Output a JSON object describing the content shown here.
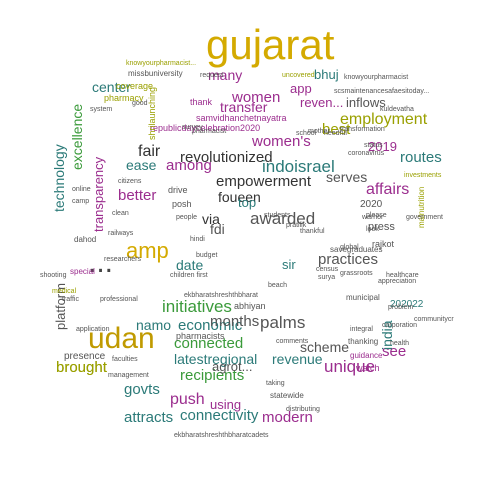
{
  "word_cloud": {
    "words": [
      {
        "text": "gujarat",
        "color": "#d4aa00"
      },
      {
        "text": "udan",
        "color": "#c09a00"
      },
      {
        "text": "amp",
        "color": "#d4aa00"
      },
      {
        "text": "...",
        "color": "#444444"
      },
      {
        "text": "indoisrael",
        "color": "#2b7a78"
      },
      {
        "text": "empowerment",
        "color": "#333333"
      },
      {
        "text": "revolutionized",
        "color": "#333333"
      },
      {
        "text": "employment",
        "color": "#9aa000"
      },
      {
        "text": "initiatives",
        "color": "#3a9a3a"
      },
      {
        "text": "practices",
        "color": "#555555"
      },
      {
        "text": "unique",
        "color": "#9b2d8e"
      },
      {
        "text": "women's",
        "color": "#9b2d8e"
      },
      {
        "text": "women",
        "color": "#9b2d8e"
      },
      {
        "text": "awarded",
        "color": "#555555"
      },
      {
        "text": "connected",
        "color": "#3a9a3a"
      },
      {
        "text": "economic",
        "color": "#2b7a78"
      },
      {
        "text": "palms",
        "color": "#555555"
      },
      {
        "text": "months",
        "color": "#555555"
      },
      {
        "text": "scheme",
        "color": "#555555"
      },
      {
        "text": "revenue",
        "color": "#2b7a78"
      },
      {
        "text": "recipients",
        "color": "#3a9a3a"
      },
      {
        "text": "latestregional",
        "color": "#2b7a78"
      },
      {
        "text": "connectivity",
        "color": "#2b7a78"
      },
      {
        "text": "modern",
        "color": "#9b2d8e"
      },
      {
        "text": "attracts",
        "color": "#2b7a78"
      },
      {
        "text": "brought",
        "color": "#9aa000"
      },
      {
        "text": "push",
        "color": "#9b2d8e"
      },
      {
        "text": "using",
        "color": "#9b2d8e"
      },
      {
        "text": "govts",
        "color": "#2b7a78"
      },
      {
        "text": "namo",
        "color": "#2b7a78"
      },
      {
        "text": "see",
        "color": "#9b2d8e"
      },
      {
        "text": "affairs",
        "color": "#9b2d8e"
      },
      {
        "text": "routes",
        "color": "#2b7a78"
      },
      {
        "text": "best",
        "color": "#9aa000"
      },
      {
        "text": "2019",
        "color": "#9b2d8e"
      },
      {
        "text": "serves",
        "color": "#555555"
      },
      {
        "text": "inflows",
        "color": "#555555"
      },
      {
        "text": "reven...",
        "color": "#9b2d8e"
      },
      {
        "text": "app",
        "color": "#9b2d8e"
      },
      {
        "text": "many",
        "color": "#9b2d8e"
      },
      {
        "text": "bhuj",
        "color": "#2b7a78"
      },
      {
        "text": "transfer",
        "color": "#9b2d8e"
      },
      {
        "text": "among",
        "color": "#9b2d8e"
      },
      {
        "text": "foueen",
        "color": "#333333"
      },
      {
        "text": "fair",
        "color": "#333333"
      },
      {
        "text": "ease",
        "color": "#2b7a78"
      },
      {
        "text": "better",
        "color": "#9b2d8e"
      },
      {
        "text": "center",
        "color": "#2b7a78"
      },
      {
        "text": "excellence",
        "color": "#3a9a3a"
      },
      {
        "text": "technology",
        "color": "#2b7a78"
      },
      {
        "text": "transparency",
        "color": "#9b2d8e"
      },
      {
        "text": "platform",
        "color": "#555555"
      },
      {
        "text": "date",
        "color": "#2b7a78"
      },
      {
        "text": "fdi",
        "color": "#555555"
      },
      {
        "text": "via",
        "color": "#333333"
      },
      {
        "text": "top",
        "color": "#2b7a78"
      },
      {
        "text": "sir",
        "color": "#2b7a78"
      },
      {
        "text": "india",
        "color": "#2b7a78"
      },
      {
        "text": "agrot...",
        "color": "#555555"
      },
      {
        "text": "press",
        "color": "#555555"
      },
      {
        "text": "2020",
        "color": "#555555"
      },
      {
        "text": "samvidhanchetnayatra",
        "color": "#9b2d8e"
      },
      {
        "text": "republicdaycelebration2020",
        "color": "#9b2d8e"
      },
      {
        "text": "shrilaunching",
        "color": "#9aa000"
      },
      {
        "text": "coverage",
        "color": "#9aa000"
      },
      {
        "text": "pharmacy",
        "color": "#9aa000"
      },
      {
        "text": "thank",
        "color": "#9b2d8e"
      },
      {
        "text": "missbuniversity",
        "color": "#555555"
      },
      {
        "text": "request",
        "color": "#555555"
      },
      {
        "text": "knowyourpharmacist...",
        "color": "#9aa000"
      },
      {
        "text": "knowyourpharmacist",
        "color": "#555555"
      },
      {
        "text": "scsmaintenancesafaesitoday...",
        "color": "#555555"
      },
      {
        "text": "uncovered",
        "color": "#9aa000"
      },
      {
        "text": "abhiyan",
        "color": "#555555"
      },
      {
        "text": "pharmacists",
        "color": "#555555"
      },
      {
        "text": "statewide",
        "color": "#555555"
      },
      {
        "text": "brought",
        "color": "#9aa000"
      },
      {
        "text": "presence",
        "color": "#555555"
      },
      {
        "text": "202022",
        "color": "#2b7a78"
      },
      {
        "text": "municipal",
        "color": "#555555"
      },
      {
        "text": "thanking",
        "color": "#555555"
      },
      {
        "text": "malnutrition",
        "color": "#9aa000"
      },
      {
        "text": "guidance",
        "color": "#9b2d8e"
      },
      {
        "text": "watch",
        "color": "#9b2d8e"
      },
      {
        "text": "drive",
        "color": "#555555"
      },
      {
        "text": "posh",
        "color": "#555555"
      },
      {
        "text": "system",
        "color": "#555555"
      },
      {
        "text": "school",
        "color": "#555555"
      },
      {
        "text": "survey",
        "color": "#555555"
      },
      {
        "text": "good",
        "color": "#555555"
      },
      {
        "text": "status",
        "color": "#555555"
      },
      {
        "text": "kuldevatha",
        "color": "#555555"
      },
      {
        "text": "healthcare",
        "color": "#555555"
      },
      {
        "text": "investments",
        "color": "#9aa000"
      },
      {
        "text": "mother",
        "color": "#555555"
      },
      {
        "text": "corporation",
        "color": "#555555"
      },
      {
        "text": "communitycr",
        "color": "#555555"
      },
      {
        "text": "appreciation",
        "color": "#555555"
      },
      {
        "text": "problem",
        "color": "#555555"
      },
      {
        "text": "ekbharatshreshthbharat",
        "color": "#555555"
      },
      {
        "text": "ekbharatshreshthbharatcadets",
        "color": "#555555"
      },
      {
        "text": "professional",
        "color": "#555555"
      },
      {
        "text": "faculties",
        "color": "#555555"
      },
      {
        "text": "management",
        "color": "#555555"
      },
      {
        "text": "application",
        "color": "#555555"
      },
      {
        "text": "medical",
        "color": "#9aa000"
      },
      {
        "text": "shooting",
        "color": "#555555"
      },
      {
        "text": "special",
        "color": "#9b2d8e"
      },
      {
        "text": "traffic",
        "color": "#555555"
      },
      {
        "text": "children first",
        "color": "#555555"
      },
      {
        "text": "comments",
        "color": "#555555"
      },
      {
        "text": "integral",
        "color": "#555555"
      },
      {
        "text": "distributing",
        "color": "#555555"
      },
      {
        "text": "taking",
        "color": "#555555"
      },
      {
        "text": "pharmacist",
        "color": "#555555"
      },
      {
        "text": "budget",
        "color": "#555555"
      },
      {
        "text": "hindi",
        "color": "#555555"
      },
      {
        "text": "online",
        "color": "#555555"
      },
      {
        "text": "camp",
        "color": "#555555"
      },
      {
        "text": "citizens",
        "color": "#555555"
      },
      {
        "text": "government",
        "color": "#555555"
      },
      {
        "text": "health",
        "color": "#555555"
      },
      {
        "text": "coronavirus",
        "color": "#555555"
      },
      {
        "text": "thankful",
        "color": "#555555"
      },
      {
        "text": "global",
        "color": "#555555"
      },
      {
        "text": "pratilik",
        "color": "#555555"
      },
      {
        "text": "warrior",
        "color": "#555555"
      },
      {
        "text": "look",
        "color": "#555555"
      },
      {
        "text": "please",
        "color": "#555555"
      },
      {
        "text": "rajkot",
        "color": "#555555"
      },
      {
        "text": "savegraduates",
        "color": "#555555"
      },
      {
        "text": "needful",
        "color": "#555555"
      },
      {
        "text": "transformation",
        "color": "#555555"
      },
      {
        "text": "grassroots",
        "color": "#555555"
      },
      {
        "text": "census",
        "color": "#555555"
      },
      {
        "text": "surya",
        "color": "#555555"
      },
      {
        "text": "researchers",
        "color": "#555555"
      },
      {
        "text": "people",
        "color": "#555555"
      },
      {
        "text": "students",
        "color": "#555555"
      },
      {
        "text": "beach",
        "color": "#555555"
      },
      {
        "text": "clean",
        "color": "#555555"
      },
      {
        "text": "dahod",
        "color": "#555555"
      },
      {
        "text": "railways",
        "color": "#555555"
      }
    ]
  }
}
